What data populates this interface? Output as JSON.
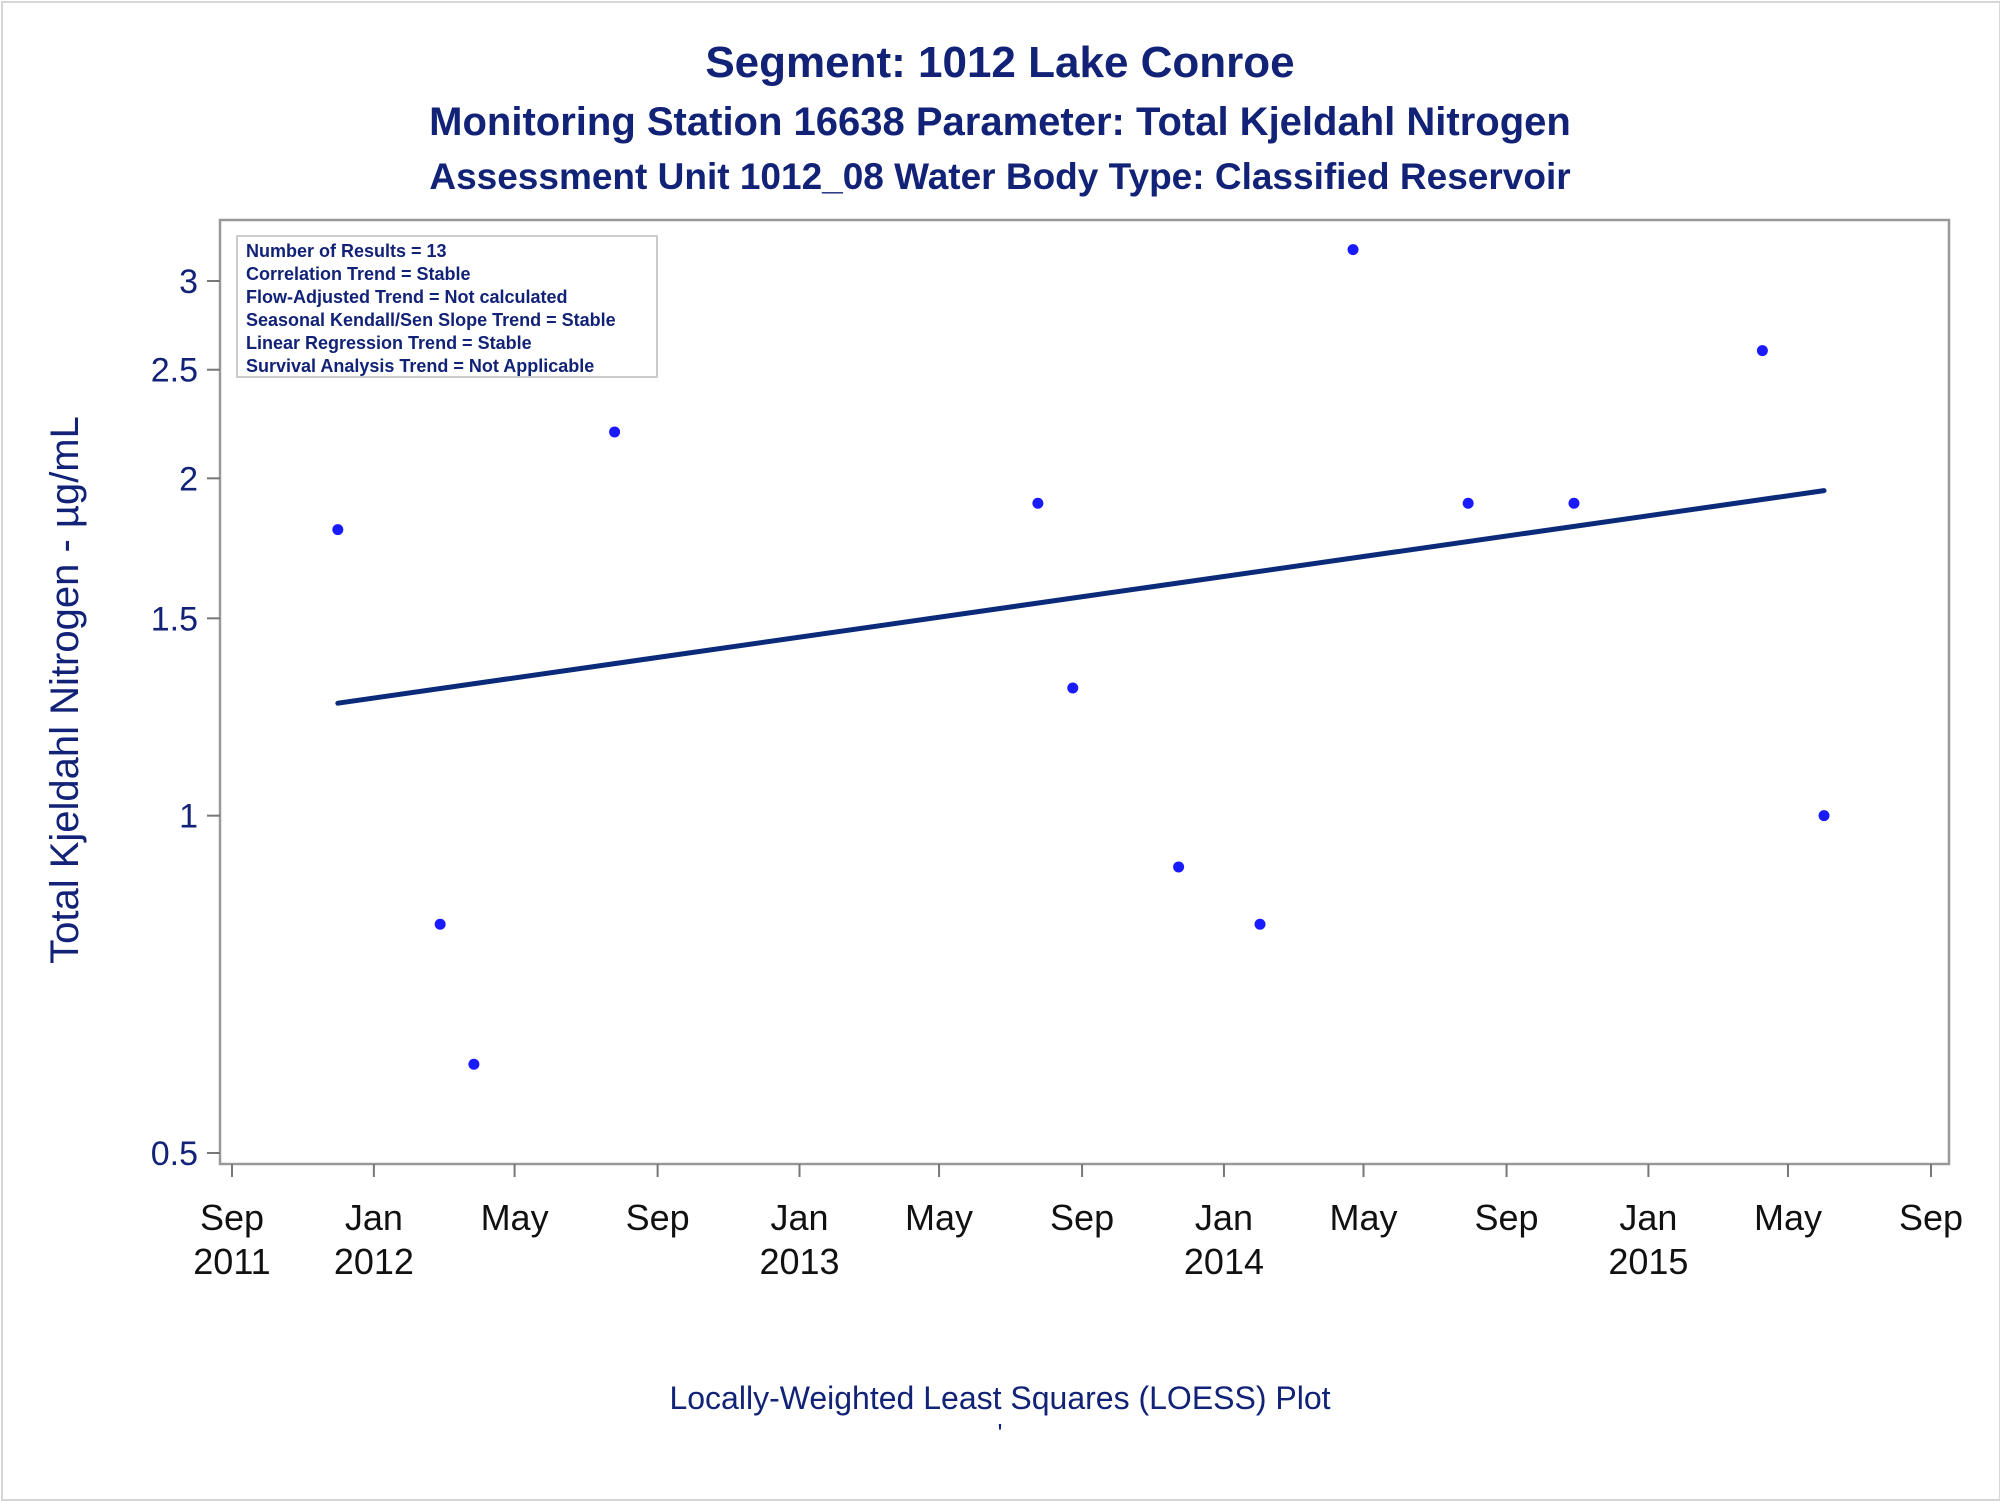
{
  "title": "Segment: 1012  Lake Conroe",
  "subtitle1": "Monitoring Station 16638 Parameter: Total Kjeldahl Nitrogen",
  "subtitle2": "Assessment Unit 1012_08   Water Body Type: Classified Reservoir",
  "footnote": "Locally-Weighted Least Squares (LOESS) Plot",
  "footnote_mark": "'",
  "colors": {
    "text": "#112277",
    "points": "#1a1aff",
    "line": "#0b2a7a",
    "frame": "#999999"
  },
  "chart_data": {
    "type": "scatter",
    "ylabel": "Total Kjeldahl Nitrogen -  µg/mL",
    "y_scale": "log",
    "ylim": [
      0.5,
      3.3
    ],
    "yticks": [
      0.5,
      1,
      1.5,
      2,
      2.5,
      3
    ],
    "ytick_labels": [
      "0.5",
      "1",
      "1.5",
      "2",
      "2.5",
      "3"
    ],
    "xlim": [
      "2011-09-01",
      "2015-09-01"
    ],
    "xticks": [
      {
        "date": "2011-09-01",
        "label": "Sep",
        "year": "2011"
      },
      {
        "date": "2012-01-01",
        "label": "Jan",
        "year": "2012"
      },
      {
        "date": "2012-05-01",
        "label": "May",
        "year": ""
      },
      {
        "date": "2012-09-01",
        "label": "Sep",
        "year": ""
      },
      {
        "date": "2013-01-01",
        "label": "Jan",
        "year": "2013"
      },
      {
        "date": "2013-05-01",
        "label": "May",
        "year": ""
      },
      {
        "date": "2013-09-01",
        "label": "Sep",
        "year": ""
      },
      {
        "date": "2014-01-01",
        "label": "Jan",
        "year": "2014"
      },
      {
        "date": "2014-05-01",
        "label": "May",
        "year": ""
      },
      {
        "date": "2014-09-01",
        "label": "Sep",
        "year": ""
      },
      {
        "date": "2015-01-01",
        "label": "Jan",
        "year": "2015"
      },
      {
        "date": "2015-05-01",
        "label": "May",
        "year": ""
      },
      {
        "date": "2015-09-01",
        "label": "Sep",
        "year": ""
      }
    ],
    "points": [
      {
        "x": "2011-12-01",
        "y": 1.8
      },
      {
        "x": "2012-02-27",
        "y": 0.8
      },
      {
        "x": "2012-03-27",
        "y": 0.6
      },
      {
        "x": "2012-07-26",
        "y": 2.2
      },
      {
        "x": "2013-07-25",
        "y": 1.9
      },
      {
        "x": "2013-08-24",
        "y": 1.3
      },
      {
        "x": "2013-11-23",
        "y": 0.9
      },
      {
        "x": "2014-02-01",
        "y": 0.8
      },
      {
        "x": "2014-04-22",
        "y": 3.2
      },
      {
        "x": "2014-07-30",
        "y": 1.9
      },
      {
        "x": "2014-10-29",
        "y": 1.9
      },
      {
        "x": "2015-04-09",
        "y": 2.6
      },
      {
        "x": "2015-06-01",
        "y": 1.0
      }
    ],
    "trend": {
      "x": [
        "2011-12-01",
        "2015-06-01"
      ],
      "y": [
        1.26,
        1.95
      ]
    },
    "stats": [
      "Number of Results = 13",
      "Correlation Trend = Stable",
      "Flow-Adjusted Trend = Not calculated",
      "Seasonal Kendall/Sen Slope Trend = Stable",
      "Linear Regression Trend = Stable",
      "Survival Analysis Trend = Not Applicable"
    ]
  }
}
